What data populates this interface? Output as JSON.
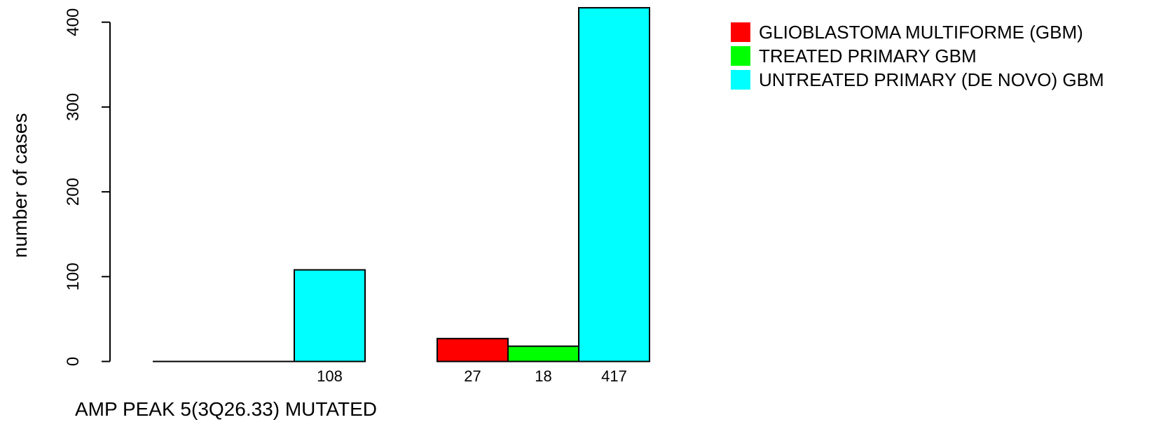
{
  "chart_data": {
    "type": "bar",
    "xlabel": "AMP PEAK  5(3Q26.33) MUTATED",
    "ylabel": "number of cases",
    "ylim": [
      0,
      420
    ],
    "yticks": [
      0,
      100,
      200,
      300,
      400
    ],
    "legend_position": "top-right",
    "groups": [
      {
        "name": "",
        "values": [
          0,
          0,
          108
        ],
        "labels": [
          "",
          "",
          "108"
        ]
      },
      {
        "name": "",
        "values": [
          27,
          18,
          417
        ],
        "labels": [
          "27",
          "18",
          "417"
        ]
      }
    ],
    "series": [
      {
        "name": "GLIOBLASTOMA MULTIFORME (GBM)",
        "color": "#ff0000"
      },
      {
        "name": "TREATED PRIMARY GBM",
        "color": "#00ff00"
      },
      {
        "name": "UNTREATED PRIMARY (DE NOVO) GBM",
        "color": "#00ffff"
      }
    ]
  }
}
